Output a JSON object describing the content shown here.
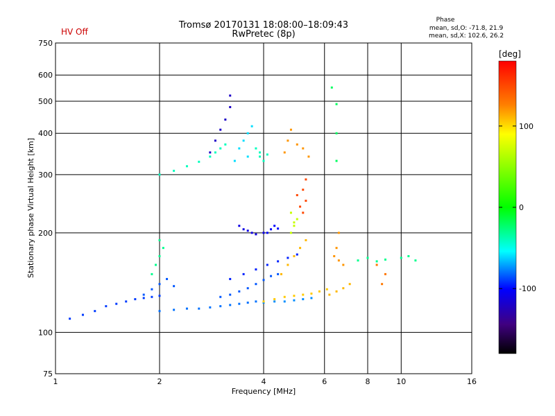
{
  "chart_data": {
    "type": "scatter",
    "title": "Tromsø 20170131 18:08:00–18:09:43",
    "subtitle": "RwPretec (8p)",
    "status_label": "HV Off",
    "phase_info": {
      "header": "Phase",
      "line_o": "mean, sd,O: -71.8, 21.9",
      "line_x": "mean, sd,X: 102.6, 26.2"
    },
    "xlabel": "Frequency [MHz]",
    "ylabel": "Stationary phase Virtual Height [km]",
    "x_scale": "log",
    "y_scale": "log",
    "xlim": [
      1,
      16
    ],
    "ylim": [
      75,
      750
    ],
    "x_ticks": [
      1,
      2,
      4,
      6,
      8,
      10,
      16
    ],
    "x_tick_labels": [
      "1",
      "2",
      "4",
      "6",
      "8",
      "10",
      "16"
    ],
    "y_ticks": [
      75,
      100,
      200,
      300,
      400,
      500,
      600,
      750
    ],
    "y_tick_labels": [
      "75",
      "100",
      "200",
      "300",
      "400",
      "500",
      "600",
      "750"
    ],
    "grid": true,
    "colorbar": {
      "label": "[deg]",
      "range": [
        -180,
        180
      ],
      "ticks": [
        100,
        0,
        -100
      ],
      "tick_labels": [
        "100",
        "0",
        "-100"
      ]
    },
    "series": [
      {
        "points": [
          [
            1.1,
            110
          ],
          [
            1.2,
            113
          ],
          [
            1.3,
            116
          ],
          [
            1.4,
            120
          ],
          [
            1.5,
            122
          ],
          [
            1.6,
            124
          ],
          [
            1.7,
            126
          ],
          [
            1.8,
            127
          ],
          [
            1.9,
            128
          ],
          [
            2.0,
            129
          ]
        ],
        "phase": -90
      },
      {
        "points": [
          [
            2.0,
            116
          ],
          [
            2.2,
            117
          ],
          [
            2.4,
            118
          ],
          [
            2.6,
            118
          ],
          [
            2.8,
            119
          ],
          [
            3.0,
            120
          ],
          [
            3.2,
            121
          ],
          [
            3.4,
            122
          ],
          [
            3.6,
            123
          ],
          [
            3.8,
            124
          ]
        ],
        "phase": -80
      },
      {
        "points": [
          [
            3.0,
            128
          ],
          [
            3.2,
            130
          ],
          [
            3.4,
            133
          ],
          [
            3.6,
            136
          ],
          [
            3.8,
            140
          ],
          [
            4.0,
            144
          ],
          [
            4.2,
            148
          ],
          [
            4.4,
            150
          ]
        ],
        "phase": -85
      },
      {
        "points": [
          [
            3.2,
            145
          ],
          [
            3.5,
            150
          ],
          [
            3.8,
            155
          ],
          [
            4.1,
            160
          ],
          [
            4.4,
            164
          ],
          [
            4.7,
            168
          ],
          [
            5.0,
            172
          ]
        ],
        "phase": -95
      },
      {
        "points": [
          [
            4.0,
            123
          ],
          [
            4.3,
            124
          ],
          [
            4.6,
            124
          ],
          [
            4.9,
            125
          ],
          [
            5.2,
            126
          ],
          [
            5.5,
            127
          ]
        ],
        "phase": -75
      },
      {
        "points": [
          [
            4.0,
            124
          ],
          [
            4.3,
            126
          ],
          [
            4.6,
            128
          ],
          [
            4.9,
            129
          ],
          [
            5.2,
            130
          ],
          [
            5.5,
            131
          ],
          [
            5.8,
            133
          ],
          [
            6.1,
            135
          ]
        ],
        "phase": 105
      },
      {
        "points": [
          [
            6.2,
            130
          ],
          [
            6.5,
            133
          ],
          [
            6.8,
            136
          ],
          [
            7.1,
            140
          ]
        ],
        "phase": 110
      },
      {
        "points": [
          [
            4.5,
            150
          ],
          [
            4.7,
            160
          ],
          [
            4.9,
            170
          ],
          [
            5.1,
            180
          ],
          [
            5.3,
            190
          ]
        ],
        "phase": 110
      },
      {
        "points": [
          [
            1.9,
            150
          ],
          [
            1.95,
            160
          ],
          [
            2.0,
            170
          ],
          [
            2.05,
            180
          ],
          [
            2.0,
            190
          ]
        ],
        "phase": -30
      },
      {
        "points": [
          [
            1.8,
            130
          ],
          [
            1.9,
            135
          ],
          [
            2.0,
            140
          ],
          [
            2.1,
            145
          ],
          [
            2.2,
            138
          ]
        ],
        "phase": -85
      },
      {
        "points": [
          [
            2.0,
            300
          ],
          [
            2.2,
            308
          ],
          [
            2.4,
            318
          ],
          [
            2.6,
            328
          ],
          [
            2.8,
            340
          ],
          [
            2.9,
            350
          ],
          [
            3.0,
            360
          ],
          [
            3.1,
            370
          ]
        ],
        "phase": -40
      },
      {
        "points": [
          [
            2.8,
            350
          ],
          [
            2.9,
            380
          ],
          [
            3.0,
            410
          ],
          [
            3.1,
            440
          ],
          [
            3.2,
            480
          ],
          [
            3.2,
            520
          ]
        ],
        "phase": -120
      },
      {
        "points": [
          [
            3.3,
            330
          ],
          [
            3.4,
            360
          ],
          [
            3.5,
            380
          ],
          [
            3.6,
            400
          ],
          [
            3.7,
            420
          ],
          [
            3.6,
            340
          ]
        ],
        "phase": -60
      },
      {
        "points": [
          [
            3.4,
            210
          ],
          [
            3.5,
            205
          ],
          [
            3.6,
            203
          ],
          [
            3.7,
            200
          ],
          [
            3.8,
            198
          ],
          [
            4.0,
            200
          ]
        ],
        "phase": -110
      },
      {
        "points": [
          [
            4.1,
            200
          ],
          [
            4.2,
            205
          ],
          [
            4.3,
            210
          ],
          [
            4.4,
            206
          ]
        ],
        "phase": -100
      },
      {
        "points": [
          [
            4.8,
            200
          ],
          [
            4.9,
            210
          ],
          [
            5.0,
            220
          ],
          [
            4.8,
            230
          ],
          [
            4.9,
            215
          ]
        ],
        "phase": 70
      },
      {
        "points": [
          [
            5.0,
            260
          ],
          [
            5.1,
            240
          ],
          [
            5.2,
            230
          ],
          [
            5.3,
            250
          ],
          [
            5.2,
            270
          ],
          [
            5.3,
            290
          ]
        ],
        "phase": 150
      },
      {
        "points": [
          [
            4.6,
            350
          ],
          [
            4.7,
            380
          ],
          [
            4.8,
            410
          ],
          [
            5.0,
            370
          ],
          [
            5.2,
            360
          ],
          [
            5.4,
            340
          ]
        ],
        "phase": 120
      },
      {
        "points": [
          [
            3.8,
            360
          ],
          [
            3.9,
            340
          ],
          [
            4.0,
            330
          ],
          [
            4.1,
            345
          ],
          [
            3.9,
            350
          ]
        ],
        "phase": -40
      },
      {
        "points": [
          [
            6.4,
            170
          ],
          [
            6.6,
            165
          ],
          [
            6.8,
            160
          ],
          [
            6.5,
            180
          ],
          [
            6.6,
            200
          ]
        ],
        "phase": 120
      },
      {
        "points": [
          [
            7.5,
            165
          ],
          [
            8.0,
            168
          ],
          [
            8.5,
            164
          ],
          [
            9.0,
            166
          ],
          [
            10.0,
            168
          ],
          [
            10.5,
            170
          ],
          [
            11.0,
            165
          ]
        ],
        "phase": -30
      },
      {
        "points": [
          [
            8.5,
            160
          ],
          [
            9.0,
            150
          ],
          [
            8.8,
            140
          ]
        ],
        "phase": 130
      },
      {
        "points": [
          [
            6.5,
            490
          ],
          [
            6.5,
            400
          ],
          [
            6.5,
            330
          ],
          [
            6.3,
            550
          ]
        ],
        "phase": -20
      }
    ]
  }
}
